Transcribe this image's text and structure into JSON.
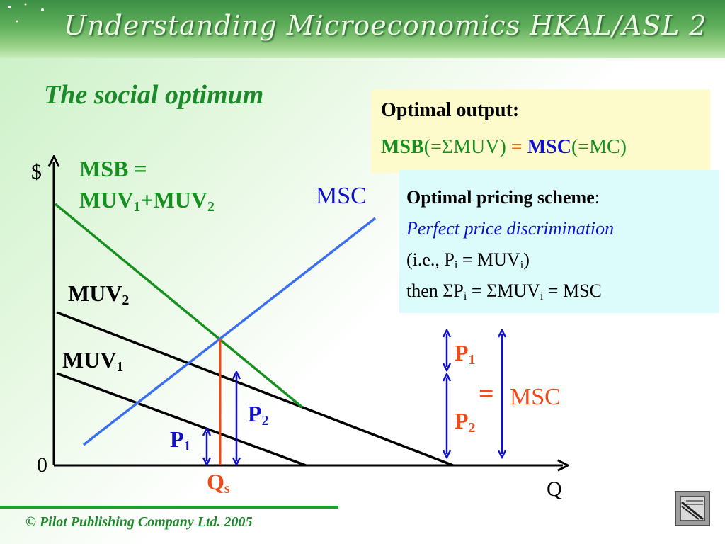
{
  "header": {
    "title": "Understanding Microeconomics HKAL/ASL 2"
  },
  "slide": {
    "title": "The social optimum"
  },
  "optimal_output": {
    "heading": "Optimal output:",
    "msb": "MSB",
    "sum_muv": "(=ΣMUV)",
    "equals": "=",
    "msc": "MSC",
    "mc": "(=MC)"
  },
  "pricing": {
    "heading": "Optimal pricing scheme",
    "colon": ":",
    "scheme": "Perfect price discrimination",
    "ie_a": "(i.e., P",
    "ie_sub1": "i",
    "ie_b": " = MUV",
    "ie_sub2": "i",
    "ie_c": ")",
    "then_a": "then ΣP",
    "then_sub1": "i",
    "then_b": " = ΣMUV",
    "then_sub2": "i",
    "then_c": " = MSC"
  },
  "diagram": {
    "y_axis": "$",
    "x_axis": "Q",
    "origin": "0",
    "msb_line1": "MSB =",
    "msb_muv": "MUV",
    "msb_sub1": "1",
    "msb_plus": "+MUV",
    "msb_sub2": "2",
    "msc": "MSC",
    "muv2": "MUV",
    "muv2_sub": "2",
    "muv1": "MUV",
    "muv1_sub": "1",
    "p2": "P",
    "p2_sub": "2",
    "p1": "P",
    "p1_sub": "1",
    "qs": "Q",
    "qs_sub": "s",
    "legend_p1": "P",
    "legend_p1_sub": "1",
    "legend_eq": "=",
    "legend_msc": "MSC",
    "legend_p2": "P",
    "legend_p2_sub": "2"
  },
  "colors": {
    "msb": "#16901f",
    "msc_line": "#3a6ff0",
    "muv": "#000000",
    "qs_line": "#f04a1a",
    "arrows": "#1111cc",
    "accent_text": "#f04a1a"
  },
  "footer": {
    "copyright": "© Pilot Publishing Company Ltd. 2005"
  },
  "icons": {
    "nav": "slide-nav-icon",
    "decor": "sparkle-icon"
  }
}
